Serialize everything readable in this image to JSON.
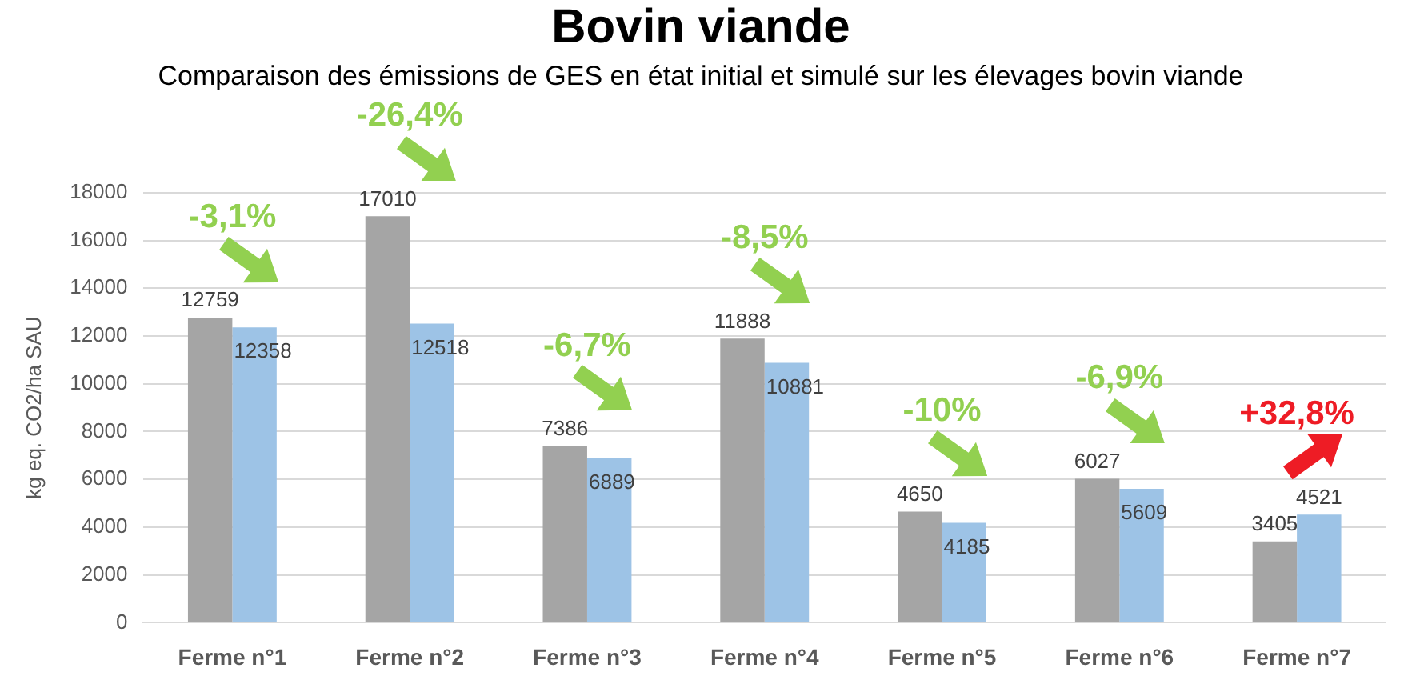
{
  "chart_data": {
    "type": "bar",
    "title": "Bovin viande",
    "subtitle": "Comparaison des émissions de GES en état initial et simulé sur les élevages bovin viande",
    "ylabel": "kg eq. CO2/ha SAU",
    "categories": [
      "Ferme n°1",
      "Ferme n°2",
      "Ferme n°3",
      "Ferme n°4",
      "Ferme n°5",
      "Ferme n°6",
      "Ferme n°7"
    ],
    "series": [
      {
        "color": "#a5a5a5",
        "values": [
          12759,
          17010,
          7386,
          11888,
          4650,
          6027,
          3405
        ]
      },
      {
        "color": "#9dc3e6",
        "values": [
          12358,
          12518,
          6889,
          10881,
          4185,
          5609,
          4521
        ]
      }
    ],
    "ylim": [
      0,
      18000
    ],
    "yticks": [
      0,
      2000,
      4000,
      6000,
      8000,
      10000,
      12000,
      14000,
      16000,
      18000
    ],
    "grid": "y",
    "legend": false,
    "data_labels": true,
    "annotations": [
      "-3,1%",
      "-26,4%",
      "-6,7%",
      "-8,5%",
      "-10%",
      "-6,9%",
      "+32,8%"
    ]
  }
}
